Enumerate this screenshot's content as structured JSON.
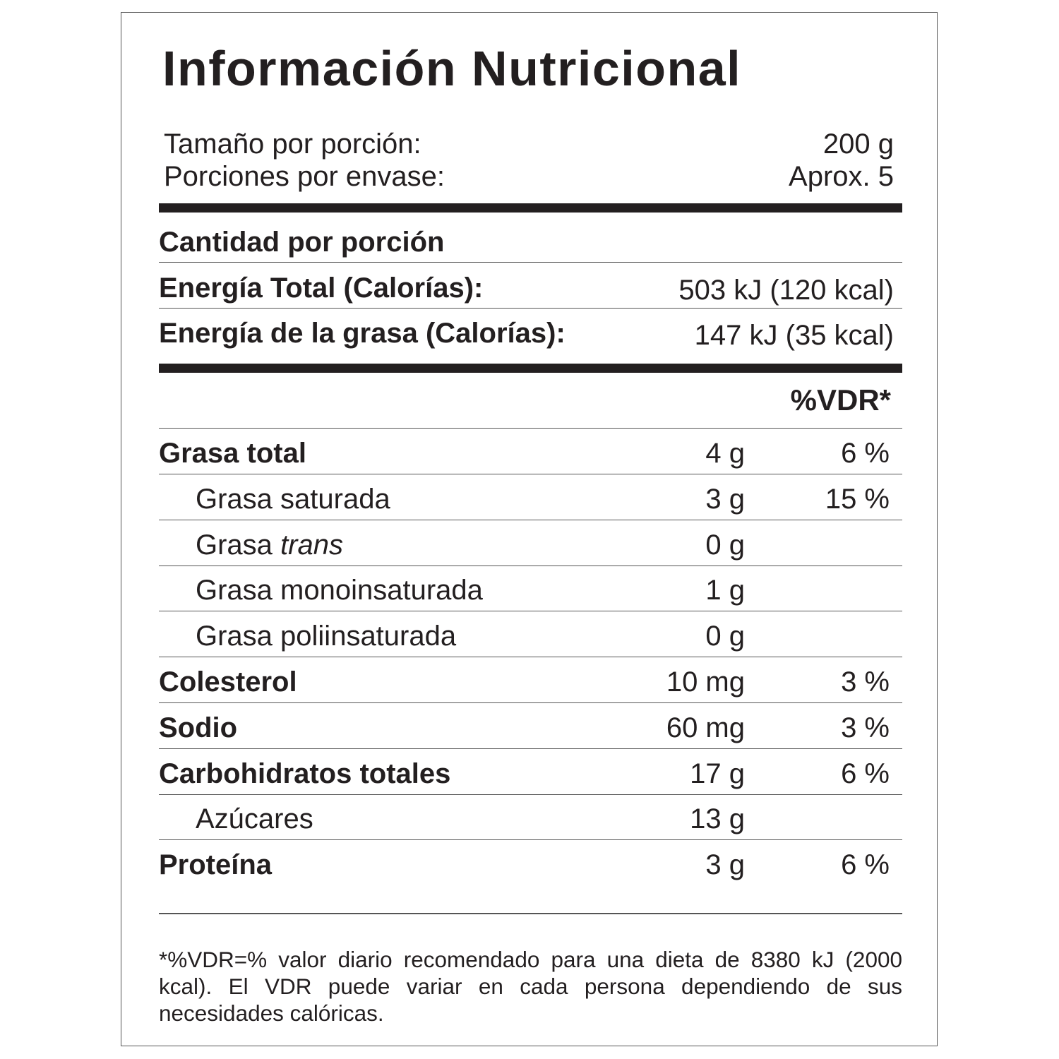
{
  "title": "Información Nutricional",
  "serving": [
    {
      "label": "Tamaño por porción:",
      "value": "200 g"
    },
    {
      "label": "Porciones por envase:",
      "value": "Aprox. 5"
    }
  ],
  "amount_header": "Cantidad por porción",
  "energy": [
    {
      "label": "Energía Total (Calorías):",
      "value": "503 kJ (120 kcal)"
    },
    {
      "label": "Energía de la grasa (Calorías):",
      "value": "147 kJ (35 kcal)"
    }
  ],
  "vdr_header": "%VDR*",
  "nutrients": [
    {
      "name": "Grasa total",
      "amount": "4 g",
      "vdr": "6 %"
    },
    {
      "name": "Grasa saturada",
      "amount": "3 g",
      "vdr": "15 %",
      "indent": true
    },
    {
      "name": "Grasa",
      "name_italic": "trans",
      "amount": "0 g",
      "indent": true
    },
    {
      "name": "Grasa monoinsaturada",
      "amount": "1 g",
      "indent": true
    },
    {
      "name": "Grasa poliinsaturada",
      "amount": "0 g",
      "indent": true
    },
    {
      "name": "Colesterol",
      "amount": "10 mg",
      "vdr": "3 %"
    },
    {
      "name": "Sodio",
      "amount": "60 mg",
      "vdr": "3 %"
    },
    {
      "name": "Carbohidratos totales",
      "amount": "17 g",
      "vdr": "6 %"
    },
    {
      "name": "Azúcares",
      "amount": "13 g",
      "indent": true
    },
    {
      "name": "Proteína",
      "amount": "3 g",
      "vdr": "6 %"
    }
  ],
  "footnote": "*%VDR=% valor diario recomendado para una dieta de 8380 kJ (2000 kcal). El VDR puede variar en cada persona dependiendo de sus necesidades calóricas."
}
